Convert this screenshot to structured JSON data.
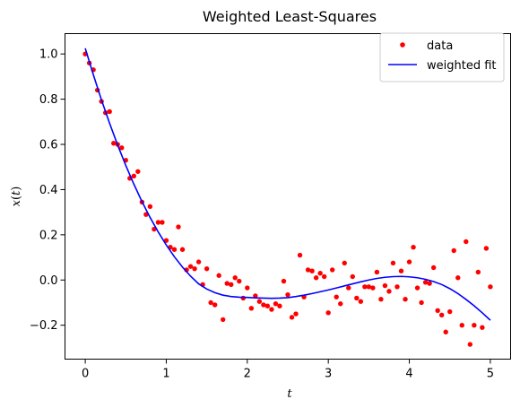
{
  "chart_data": {
    "type": "scatter",
    "title": "Weighted Least-Squares",
    "xlabel": "t",
    "ylabel_var": "x",
    "ylabel_arg": "t",
    "xlim": [
      -0.25,
      5.25
    ],
    "ylim": [
      -0.35,
      1.09
    ],
    "x_ticks": [
      0,
      1,
      2,
      3,
      4,
      5
    ],
    "x_tick_labels": [
      "0",
      "1",
      "2",
      "3",
      "4",
      "5"
    ],
    "y_ticks": [
      -0.2,
      0.0,
      0.2,
      0.4,
      0.6,
      0.8,
      1.0
    ],
    "y_tick_labels": [
      "−0.2",
      "0.0",
      "0.2",
      "0.4",
      "0.6",
      "0.8",
      "1.0"
    ],
    "grid": false,
    "legend_position": "top-right",
    "colors": {
      "data": "#ff0000",
      "fit": "#0000ff"
    },
    "series": [
      {
        "name": "data",
        "kind": "markers",
        "x": [
          0.0,
          0.05,
          0.1,
          0.15,
          0.2,
          0.25,
          0.3,
          0.35,
          0.4,
          0.45,
          0.5,
          0.55,
          0.6,
          0.65,
          0.7,
          0.75,
          0.8,
          0.85,
          0.9,
          0.95,
          1.0,
          1.05,
          1.1,
          1.15,
          1.2,
          1.25,
          1.3,
          1.35,
          1.4,
          1.45,
          1.5,
          1.55,
          1.6,
          1.65,
          1.7,
          1.75,
          1.8,
          1.85,
          1.9,
          1.95,
          2.0,
          2.05,
          2.1,
          2.15,
          2.2,
          2.25,
          2.3,
          2.35,
          2.4,
          2.45,
          2.5,
          2.55,
          2.6,
          2.65,
          2.7,
          2.75,
          2.8,
          2.85,
          2.9,
          2.95,
          3.0,
          3.05,
          3.1,
          3.15,
          3.2,
          3.25,
          3.3,
          3.35,
          3.4,
          3.45,
          3.5,
          3.55,
          3.6,
          3.65,
          3.7,
          3.75,
          3.8,
          3.85,
          3.9,
          3.95,
          4.0,
          4.05,
          4.1,
          4.15,
          4.2,
          4.25,
          4.3,
          4.35,
          4.4,
          4.45,
          4.5,
          4.55,
          4.6,
          4.65,
          4.7,
          4.75,
          4.8,
          4.85,
          4.9,
          4.95,
          5.0
        ],
        "y": [
          1.0,
          0.96,
          0.93,
          0.84,
          0.79,
          0.74,
          0.745,
          0.605,
          0.6,
          0.585,
          0.53,
          0.45,
          0.46,
          0.48,
          0.345,
          0.29,
          0.325,
          0.225,
          0.255,
          0.255,
          0.175,
          0.145,
          0.135,
          0.235,
          0.135,
          0.045,
          0.06,
          0.05,
          0.08,
          -0.02,
          0.05,
          -0.1,
          -0.11,
          0.02,
          -0.175,
          -0.015,
          -0.02,
          0.01,
          -0.005,
          -0.08,
          -0.035,
          -0.125,
          -0.07,
          -0.095,
          -0.11,
          -0.115,
          -0.13,
          -0.105,
          -0.115,
          -0.005,
          -0.065,
          -0.165,
          -0.15,
          0.11,
          -0.075,
          0.045,
          0.04,
          0.01,
          0.03,
          0.015,
          -0.145,
          0.045,
          -0.075,
          -0.105,
          0.075,
          -0.035,
          0.015,
          -0.08,
          -0.095,
          -0.03,
          -0.03,
          -0.035,
          0.035,
          -0.085,
          -0.025,
          -0.05,
          0.075,
          -0.03,
          0.04,
          -0.085,
          0.08,
          0.145,
          -0.035,
          -0.1,
          -0.01,
          -0.015,
          0.055,
          -0.135,
          -0.155,
          -0.23,
          -0.14,
          0.13,
          0.01,
          -0.2,
          0.17,
          -0.285,
          -0.2,
          0.035,
          -0.21,
          0.14,
          -0.03
        ]
      },
      {
        "name": "weighted fit",
        "kind": "line",
        "x": [
          0.0,
          0.1,
          0.2,
          0.3,
          0.4,
          0.5,
          0.6,
          0.7,
          0.8,
          0.9,
          1.0,
          1.1,
          1.2,
          1.3,
          1.4,
          1.5,
          1.6,
          1.7,
          1.8,
          1.9,
          2.0,
          2.1,
          2.2,
          2.3,
          2.4,
          2.5,
          2.6,
          2.7,
          2.8,
          2.9,
          3.0,
          3.1,
          3.2,
          3.3,
          3.4,
          3.5,
          3.6,
          3.7,
          3.8,
          3.9,
          4.0,
          4.1,
          4.2,
          4.3,
          4.4,
          4.5,
          4.6,
          4.7,
          4.8,
          4.9,
          5.0
        ],
        "y": [
          1.025,
          0.908,
          0.797,
          0.694,
          0.597,
          0.507,
          0.424,
          0.347,
          0.277,
          0.213,
          0.155,
          0.103,
          0.057,
          0.017,
          -0.017,
          -0.04,
          -0.056,
          -0.067,
          -0.073,
          -0.076,
          -0.077,
          -0.079,
          -0.08,
          -0.081,
          -0.08,
          -0.078,
          -0.073,
          -0.067,
          -0.06,
          -0.052,
          -0.044,
          -0.035,
          -0.026,
          -0.017,
          -0.008,
          0.0,
          0.007,
          0.012,
          0.015,
          0.016,
          0.014,
          0.01,
          0.003,
          -0.007,
          -0.02,
          -0.038,
          -0.06,
          -0.086,
          -0.114,
          -0.145,
          -0.178
        ]
      }
    ]
  }
}
